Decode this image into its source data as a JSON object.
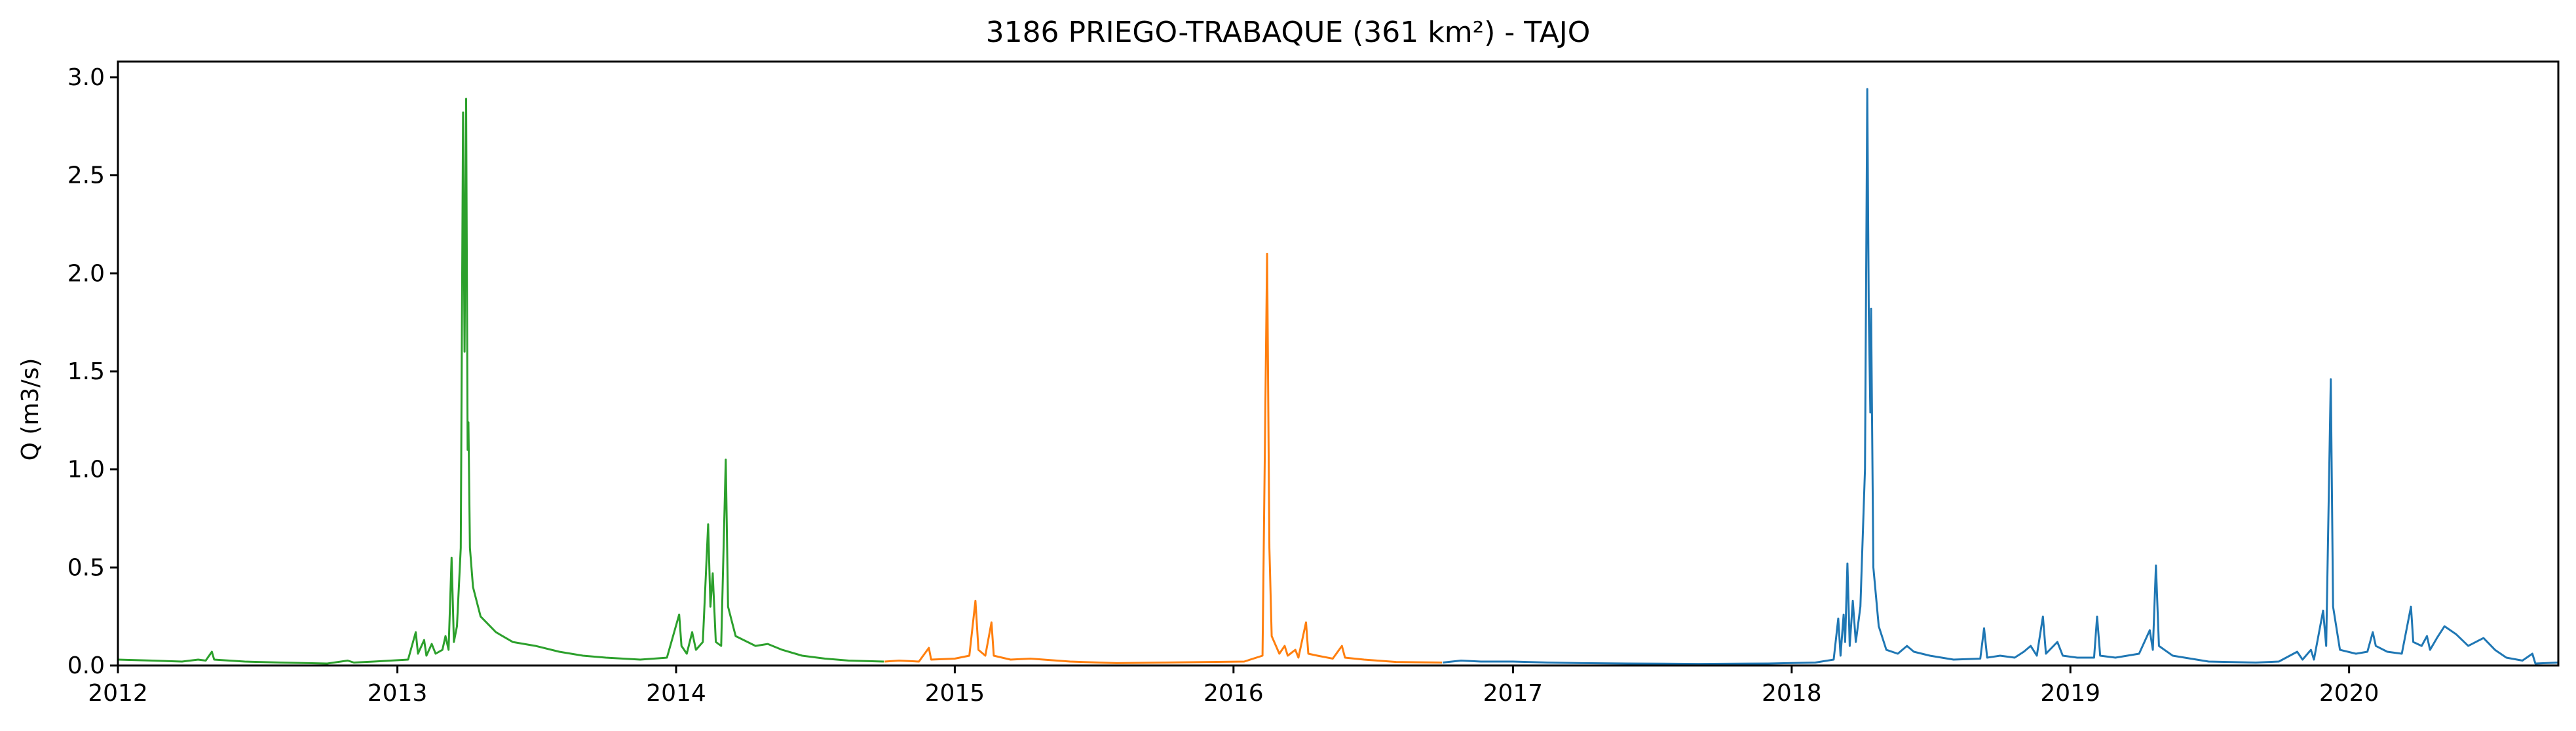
{
  "chart_data": {
    "type": "line",
    "title": "3186 PRIEGO-TRABAQUE (361 km²) - TAJO",
    "xlabel": "",
    "ylabel": "Q (m3/s)",
    "xlim": [
      "2012-01-01",
      "2020-10-01"
    ],
    "ylim": [
      0,
      3.08
    ],
    "x_ticks": [
      "2012",
      "2013",
      "2014",
      "2015",
      "2016",
      "2017",
      "2018",
      "2019",
      "2020"
    ],
    "y_ticks": [
      "0.0",
      "0.5",
      "1.0",
      "1.5",
      "2.0",
      "2.5",
      "3.0"
    ],
    "grid": false,
    "legend": "none",
    "series": [
      {
        "color": "#2ca02c",
        "points": [
          [
            "2012-01-01",
            0.03
          ],
          [
            "2012-02-15",
            0.025
          ],
          [
            "2012-03-25",
            0.02
          ],
          [
            "2012-04-15",
            0.03
          ],
          [
            "2012-04-25",
            0.025
          ],
          [
            "2012-05-03",
            0.07
          ],
          [
            "2012-05-06",
            0.03
          ],
          [
            "2012-06-15",
            0.02
          ],
          [
            "2012-08-01",
            0.015
          ],
          [
            "2012-10-01",
            0.01
          ],
          [
            "2012-10-28",
            0.025
          ],
          [
            "2012-11-05",
            0.015
          ],
          [
            "2012-12-01",
            0.02
          ],
          [
            "2013-01-15",
            0.03
          ],
          [
            "2013-01-25",
            0.17
          ],
          [
            "2013-01-28",
            0.06
          ],
          [
            "2013-02-05",
            0.13
          ],
          [
            "2013-02-08",
            0.05
          ],
          [
            "2013-02-15",
            0.11
          ],
          [
            "2013-02-20",
            0.06
          ],
          [
            "2013-03-01",
            0.08
          ],
          [
            "2013-03-05",
            0.15
          ],
          [
            "2013-03-09",
            0.08
          ],
          [
            "2013-03-13",
            0.55
          ],
          [
            "2013-03-16",
            0.12
          ],
          [
            "2013-03-20",
            0.2
          ],
          [
            "2013-03-25",
            0.6
          ],
          [
            "2013-03-28",
            2.82
          ],
          [
            "2013-03-30",
            1.6
          ],
          [
            "2013-04-01",
            2.89
          ],
          [
            "2013-04-03",
            1.1
          ],
          [
            "2013-04-04",
            1.24
          ],
          [
            "2013-04-06",
            0.6
          ],
          [
            "2013-04-10",
            0.4
          ],
          [
            "2013-04-20",
            0.25
          ],
          [
            "2013-05-10",
            0.17
          ],
          [
            "2013-06-01",
            0.12
          ],
          [
            "2013-07-01",
            0.1
          ],
          [
            "2013-08-01",
            0.07
          ],
          [
            "2013-09-01",
            0.05
          ],
          [
            "2013-10-01",
            0.04
          ],
          [
            "2013-11-15",
            0.03
          ],
          [
            "2013-12-20",
            0.04
          ],
          [
            "2014-01-05",
            0.26
          ],
          [
            "2014-01-08",
            0.1
          ],
          [
            "2014-01-15",
            0.06
          ],
          [
            "2014-01-22",
            0.17
          ],
          [
            "2014-01-27",
            0.08
          ],
          [
            "2014-02-05",
            0.12
          ],
          [
            "2014-02-12",
            0.72
          ],
          [
            "2014-02-15",
            0.3
          ],
          [
            "2014-02-18",
            0.47
          ],
          [
            "2014-02-22",
            0.12
          ],
          [
            "2014-03-01",
            0.1
          ],
          [
            "2014-03-07",
            1.05
          ],
          [
            "2014-03-10",
            0.3
          ],
          [
            "2014-03-20",
            0.15
          ],
          [
            "2014-04-15",
            0.1
          ],
          [
            "2014-05-01",
            0.11
          ],
          [
            "2014-05-20",
            0.08
          ],
          [
            "2014-06-15",
            0.05
          ],
          [
            "2014-07-15",
            0.035
          ],
          [
            "2014-08-15",
            0.025
          ],
          [
            "2014-09-30",
            0.02
          ]
        ]
      },
      {
        "color": "#ff7f0e",
        "points": [
          [
            "2014-10-01",
            0.02
          ],
          [
            "2014-10-20",
            0.025
          ],
          [
            "2014-11-15",
            0.02
          ],
          [
            "2014-11-28",
            0.09
          ],
          [
            "2014-12-01",
            0.03
          ],
          [
            "2015-01-01",
            0.035
          ],
          [
            "2015-01-20",
            0.05
          ],
          [
            "2015-01-28",
            0.33
          ],
          [
            "2015-02-01",
            0.08
          ],
          [
            "2015-02-10",
            0.05
          ],
          [
            "2015-02-18",
            0.22
          ],
          [
            "2015-02-21",
            0.05
          ],
          [
            "2015-03-15",
            0.03
          ],
          [
            "2015-04-10",
            0.035
          ],
          [
            "2015-06-01",
            0.02
          ],
          [
            "2015-08-01",
            0.012
          ],
          [
            "2015-10-01",
            0.015
          ],
          [
            "2015-12-01",
            0.018
          ],
          [
            "2016-01-15",
            0.02
          ],
          [
            "2016-02-08",
            0.05
          ],
          [
            "2016-02-14",
            2.1
          ],
          [
            "2016-02-17",
            0.6
          ],
          [
            "2016-02-20",
            0.15
          ],
          [
            "2016-03-01",
            0.06
          ],
          [
            "2016-03-08",
            0.1
          ],
          [
            "2016-03-12",
            0.05
          ],
          [
            "2016-03-22",
            0.08
          ],
          [
            "2016-03-26",
            0.04
          ],
          [
            "2016-04-05",
            0.22
          ],
          [
            "2016-04-08",
            0.06
          ],
          [
            "2016-04-20",
            0.05
          ],
          [
            "2016-05-10",
            0.035
          ],
          [
            "2016-05-22",
            0.1
          ],
          [
            "2016-05-26",
            0.04
          ],
          [
            "2016-06-20",
            0.03
          ],
          [
            "2016-08-01",
            0.018
          ],
          [
            "2016-09-30",
            0.015
          ]
        ]
      },
      {
        "color": "#1f77b4",
        "points": [
          [
            "2016-10-01",
            0.015
          ],
          [
            "2016-10-25",
            0.025
          ],
          [
            "2016-11-20",
            0.02
          ],
          [
            "2017-01-01",
            0.02
          ],
          [
            "2017-02-15",
            0.015
          ],
          [
            "2017-04-01",
            0.012
          ],
          [
            "2017-06-01",
            0.01
          ],
          [
            "2017-09-01",
            0.008
          ],
          [
            "2017-12-01",
            0.01
          ],
          [
            "2018-02-01",
            0.015
          ],
          [
            "2018-02-25",
            0.03
          ],
          [
            "2018-03-03",
            0.24
          ],
          [
            "2018-03-06",
            0.05
          ],
          [
            "2018-03-10",
            0.26
          ],
          [
            "2018-03-12",
            0.12
          ],
          [
            "2018-03-15",
            0.52
          ],
          [
            "2018-03-18",
            0.1
          ],
          [
            "2018-03-22",
            0.33
          ],
          [
            "2018-03-26",
            0.12
          ],
          [
            "2018-04-01",
            0.3
          ],
          [
            "2018-04-07",
            1.0
          ],
          [
            "2018-04-10",
            2.94
          ],
          [
            "2018-04-12",
            1.8
          ],
          [
            "2018-04-14",
            1.29
          ],
          [
            "2018-04-15",
            1.82
          ],
          [
            "2018-04-18",
            0.5
          ],
          [
            "2018-04-25",
            0.2
          ],
          [
            "2018-05-05",
            0.08
          ],
          [
            "2018-05-20",
            0.06
          ],
          [
            "2018-06-01",
            0.1
          ],
          [
            "2018-06-10",
            0.07
          ],
          [
            "2018-07-01",
            0.05
          ],
          [
            "2018-08-01",
            0.03
          ],
          [
            "2018-09-05",
            0.035
          ],
          [
            "2018-09-10",
            0.19
          ],
          [
            "2018-09-14",
            0.04
          ],
          [
            "2018-10-01",
            0.05
          ],
          [
            "2018-10-20",
            0.04
          ],
          [
            "2018-11-01",
            0.07
          ],
          [
            "2018-11-10",
            0.1
          ],
          [
            "2018-11-18",
            0.05
          ],
          [
            "2018-11-26",
            0.25
          ],
          [
            "2018-11-30",
            0.06
          ],
          [
            "2018-12-15",
            0.12
          ],
          [
            "2018-12-22",
            0.05
          ],
          [
            "2019-01-10",
            0.04
          ],
          [
            "2019-02-01",
            0.04
          ],
          [
            "2019-02-05",
            0.25
          ],
          [
            "2019-02-09",
            0.05
          ],
          [
            "2019-03-01",
            0.04
          ],
          [
            "2019-04-01",
            0.06
          ],
          [
            "2019-04-15",
            0.18
          ],
          [
            "2019-04-19",
            0.08
          ],
          [
            "2019-04-23",
            0.51
          ],
          [
            "2019-04-27",
            0.1
          ],
          [
            "2019-05-15",
            0.05
          ],
          [
            "2019-07-01",
            0.02
          ],
          [
            "2019-09-01",
            0.015
          ],
          [
            "2019-10-01",
            0.02
          ],
          [
            "2019-10-25",
            0.07
          ],
          [
            "2019-11-01",
            0.03
          ],
          [
            "2019-11-12",
            0.08
          ],
          [
            "2019-11-16",
            0.03
          ],
          [
            "2019-11-28",
            0.28
          ],
          [
            "2019-12-02",
            0.1
          ],
          [
            "2019-12-08",
            1.46
          ],
          [
            "2019-12-11",
            0.3
          ],
          [
            "2019-12-20",
            0.08
          ],
          [
            "2020-01-10",
            0.06
          ],
          [
            "2020-01-25",
            0.07
          ],
          [
            "2020-02-01",
            0.17
          ],
          [
            "2020-02-05",
            0.1
          ],
          [
            "2020-02-20",
            0.07
          ],
          [
            "2020-03-10",
            0.06
          ],
          [
            "2020-03-22",
            0.3
          ],
          [
            "2020-03-25",
            0.12
          ],
          [
            "2020-04-05",
            0.1
          ],
          [
            "2020-04-12",
            0.15
          ],
          [
            "2020-04-16",
            0.08
          ],
          [
            "2020-04-25",
            0.14
          ],
          [
            "2020-05-05",
            0.2
          ],
          [
            "2020-05-20",
            0.16
          ],
          [
            "2020-06-05",
            0.1
          ],
          [
            "2020-06-25",
            0.14
          ],
          [
            "2020-07-10",
            0.08
          ],
          [
            "2020-07-25",
            0.04
          ],
          [
            "2020-08-15",
            0.025
          ],
          [
            "2020-08-28",
            0.06
          ],
          [
            "2020-09-01",
            0.01
          ],
          [
            "2020-10-01",
            0.015
          ]
        ]
      }
    ]
  }
}
